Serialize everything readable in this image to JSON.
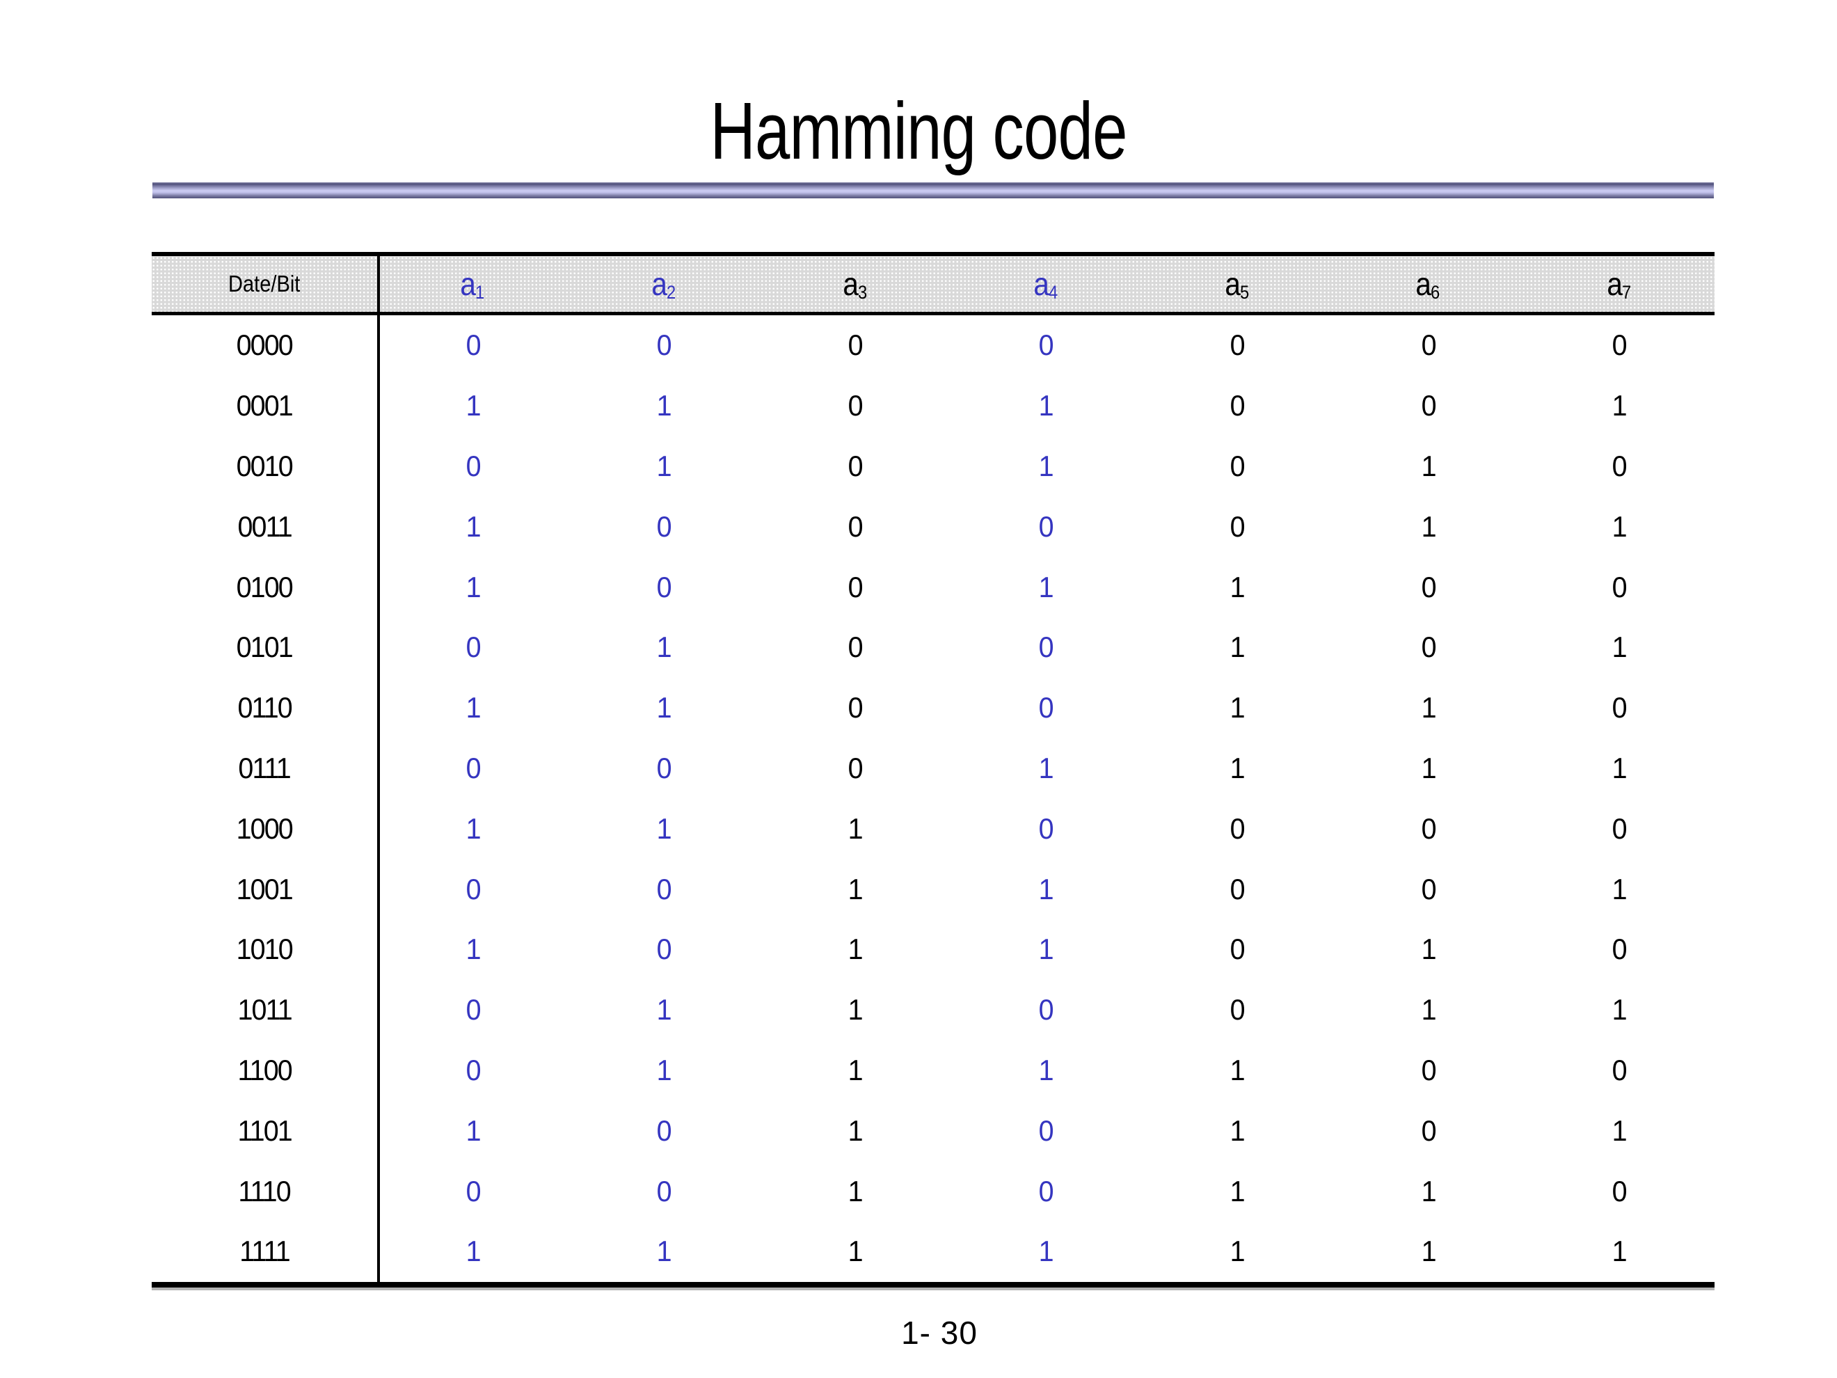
{
  "slide": {
    "title": "Hamming code",
    "page_number": "1- 30"
  },
  "table": {
    "corner_label": "Date/Bit",
    "columns": [
      {
        "base": "a",
        "sub": "1",
        "parity": true
      },
      {
        "base": "a",
        "sub": "2",
        "parity": true
      },
      {
        "base": "a",
        "sub": "3",
        "parity": false
      },
      {
        "base": "a",
        "sub": "4",
        "parity": true
      },
      {
        "base": "a",
        "sub": "5",
        "parity": false
      },
      {
        "base": "a",
        "sub": "6",
        "parity": false
      },
      {
        "base": "a",
        "sub": "7",
        "parity": false
      }
    ],
    "rows": [
      {
        "data": "0000",
        "bits": [
          "0",
          "0",
          "0",
          "0",
          "0",
          "0",
          "0"
        ]
      },
      {
        "data": "0001",
        "bits": [
          "1",
          "1",
          "0",
          "1",
          "0",
          "0",
          "1"
        ]
      },
      {
        "data": "0010",
        "bits": [
          "0",
          "1",
          "0",
          "1",
          "0",
          "1",
          "0"
        ]
      },
      {
        "data": "0011",
        "bits": [
          "1",
          "0",
          "0",
          "0",
          "0",
          "1",
          "1"
        ]
      },
      {
        "data": "0100",
        "bits": [
          "1",
          "0",
          "0",
          "1",
          "1",
          "0",
          "0"
        ]
      },
      {
        "data": "0101",
        "bits": [
          "0",
          "1",
          "0",
          "0",
          "1",
          "0",
          "1"
        ]
      },
      {
        "data": "0110",
        "bits": [
          "1",
          "1",
          "0",
          "0",
          "1",
          "1",
          "0"
        ]
      },
      {
        "data": "0111",
        "bits": [
          "0",
          "0",
          "0",
          "1",
          "1",
          "1",
          "1"
        ]
      },
      {
        "data": "1000",
        "bits": [
          "1",
          "1",
          "1",
          "0",
          "0",
          "0",
          "0"
        ]
      },
      {
        "data": "1001",
        "bits": [
          "0",
          "0",
          "1",
          "1",
          "0",
          "0",
          "1"
        ]
      },
      {
        "data": "1010",
        "bits": [
          "1",
          "0",
          "1",
          "1",
          "0",
          "1",
          "0"
        ]
      },
      {
        "data": "1011",
        "bits": [
          "0",
          "1",
          "1",
          "0",
          "0",
          "1",
          "1"
        ]
      },
      {
        "data": "1100",
        "bits": [
          "0",
          "1",
          "1",
          "1",
          "1",
          "0",
          "0"
        ]
      },
      {
        "data": "1101",
        "bits": [
          "1",
          "0",
          "1",
          "0",
          "1",
          "0",
          "1"
        ]
      },
      {
        "data": "1110",
        "bits": [
          "0",
          "0",
          "1",
          "0",
          "1",
          "1",
          "0"
        ]
      },
      {
        "data": "1111",
        "bits": [
          "1",
          "1",
          "1",
          "1",
          "1",
          "1",
          "1"
        ]
      }
    ]
  },
  "colors": {
    "parity_blue": "#3535C0",
    "header_bg": "#D9D9D9",
    "divider_purple_light": "#CDCDF4",
    "divider_purple_dark": "#50507A"
  }
}
